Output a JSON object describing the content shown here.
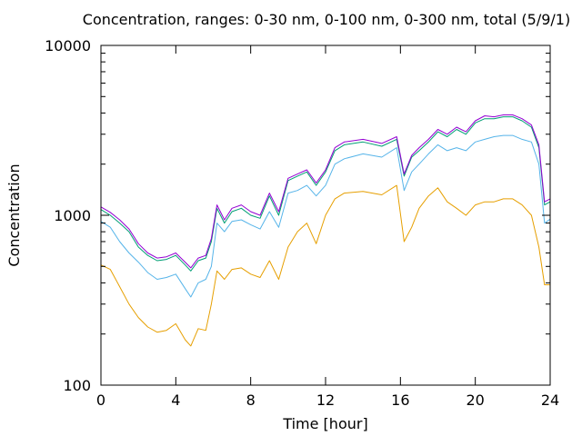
{
  "chart_data": {
    "type": "line",
    "title": "Concentration, ranges: 0-30 nm, 0-100 nm, 0-300 nm, total (5/9/1)",
    "xlabel": "Time [hour]",
    "ylabel": "Concentration",
    "xlim": [
      0,
      24
    ],
    "ylim": [
      100,
      10000
    ],
    "yscale": "log",
    "grid": false,
    "legend": "none",
    "x_ticks": [
      0,
      4,
      8,
      12,
      16,
      20,
      24
    ],
    "x_tick_labels": [
      "0",
      "4",
      "8",
      "12",
      "16",
      "20",
      "24"
    ],
    "y_ticks": [
      100,
      1000,
      10000
    ],
    "y_tick_labels": [
      "100",
      "1000",
      "10000"
    ],
    "x": [
      0,
      0.5,
      1,
      1.5,
      2,
      2.5,
      3,
      3.5,
      4,
      4.5,
      4.8,
      5.2,
      5.6,
      5.9,
      6.2,
      6.6,
      7,
      7.5,
      8,
      8.5,
      9,
      9.5,
      10,
      10.5,
      11,
      11.5,
      12,
      12.5,
      13,
      14,
      15,
      15.8,
      16.2,
      16.6,
      17,
      17.5,
      18,
      18.5,
      19,
      19.5,
      20,
      20.5,
      21,
      21.5,
      22,
      22.5,
      23,
      23.4,
      23.7,
      24
    ],
    "series": [
      {
        "color": "#e69f00",
        "values": [
          510,
          480,
          380,
          300,
          250,
          220,
          205,
          210,
          230,
          185,
          170,
          215,
          210,
          300,
          470,
          420,
          480,
          490,
          450,
          430,
          540,
          420,
          650,
          800,
          900,
          680,
          1000,
          1250,
          1350,
          1380,
          1320,
          1500,
          700,
          850,
          1100,
          1300,
          1450,
          1200,
          1100,
          1000,
          1150,
          1200,
          1200,
          1250,
          1250,
          1150,
          1000,
          650,
          390,
          390
        ]
      },
      {
        "color": "#56b4e9",
        "values": [
          920,
          850,
          700,
          600,
          530,
          460,
          420,
          430,
          450,
          370,
          330,
          400,
          420,
          500,
          900,
          800,
          920,
          940,
          880,
          830,
          1050,
          850,
          1350,
          1400,
          1500,
          1300,
          1500,
          2000,
          2150,
          2300,
          2200,
          2500,
          1400,
          1800,
          2000,
          2300,
          2600,
          2400,
          2500,
          2400,
          2700,
          2800,
          2900,
          2950,
          2950,
          2800,
          2700,
          2000,
          900,
          950
        ]
      },
      {
        "color": "#009e73",
        "values": [
          1080,
          1000,
          900,
          800,
          650,
          580,
          540,
          550,
          580,
          510,
          470,
          540,
          560,
          700,
          1100,
          900,
          1050,
          1100,
          1000,
          960,
          1300,
          1000,
          1600,
          1700,
          1800,
          1500,
          1800,
          2400,
          2600,
          2700,
          2550,
          2800,
          1700,
          2200,
          2400,
          2700,
          3100,
          2900,
          3200,
          3000,
          3500,
          3700,
          3700,
          3800,
          3800,
          3600,
          3300,
          2500,
          1150,
          1200
        ]
      },
      {
        "color": "#9400d3",
        "values": [
          1120,
          1040,
          940,
          830,
          680,
          600,
          560,
          570,
          600,
          530,
          490,
          560,
          580,
          730,
          1150,
          940,
          1100,
          1150,
          1050,
          1000,
          1350,
          1050,
          1650,
          1750,
          1850,
          1550,
          1850,
          2500,
          2700,
          2800,
          2650,
          2900,
          1750,
          2250,
          2500,
          2800,
          3200,
          3000,
          3300,
          3100,
          3600,
          3850,
          3800,
          3900,
          3900,
          3700,
          3400,
          2600,
          1200,
          1250
        ]
      }
    ]
  }
}
